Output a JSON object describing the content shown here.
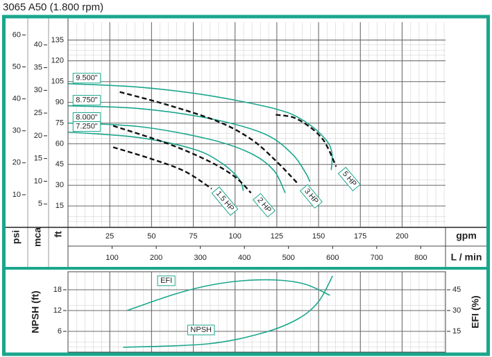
{
  "chart_data": [
    {
      "type": "line",
      "title": "3065 A50 (1.800 rpm)",
      "xlabel": "gpm",
      "xlim": [
        0,
        226
      ],
      "xticks": [
        25,
        50,
        75,
        100,
        125,
        150,
        175,
        200
      ],
      "x2label": "L / min",
      "x2lim": [
        0,
        856
      ],
      "x2ticks": [
        100,
        200,
        300,
        400,
        500,
        600,
        700,
        800
      ],
      "ylabel": "ft",
      "ylim": [
        0,
        148
      ],
      "yticks": [
        15,
        30,
        45,
        60,
        75,
        90,
        105,
        120,
        135
      ],
      "y2label": "psi",
      "y2lim": [
        0,
        64
      ],
      "y2ticks": [
        10,
        20,
        30,
        40,
        50,
        60
      ],
      "y3label": "mca",
      "y3lim": [
        0,
        45
      ],
      "y3ticks": [
        5,
        10,
        15,
        20,
        25,
        30,
        35,
        40
      ],
      "grid": true,
      "series": [
        {
          "name": "9.500\"",
          "color": "#1aa68c",
          "x": [
            0,
            42.3,
            83.8,
            125,
            142,
            154,
            158,
            157.6
          ],
          "values": [
            103.5,
            101,
            95,
            85,
            76,
            63.5,
            53.5,
            41
          ]
        },
        {
          "name": "8.750\"",
          "color": "#1aa68c",
          "x": [
            0,
            42.3,
            83.8,
            117,
            133.5,
            142,
            144.8
          ],
          "values": [
            87.5,
            85.5,
            78.5,
            67.5,
            53.5,
            39.5,
            32.5
          ]
        },
        {
          "name": "8.000\"",
          "color": "#1aa68c",
          "x": [
            0,
            42.3,
            83.8,
            108.7,
            123,
            130
          ],
          "values": [
            75,
            72.5,
            63.5,
            53.5,
            41,
            24.5
          ]
        },
        {
          "name": "7.250\"",
          "color": "#1aa68c",
          "x": [
            0,
            42.3,
            75.5,
            92,
            102.4,
            105
          ],
          "values": [
            68.5,
            64.5,
            56,
            46,
            34.5,
            26
          ]
        },
        {
          "name": "1.5 HP",
          "color": "#111111",
          "dash": true,
          "x": [
            27,
            50,
            70,
            86
          ],
          "values": [
            57.5,
            49,
            40,
            27.5
          ]
        },
        {
          "name": "2 HP",
          "color": "#111111",
          "dash": true,
          "x": [
            27,
            60,
            85,
            100,
            109.5
          ],
          "values": [
            73,
            60,
            47,
            36,
            24.5
          ]
        },
        {
          "name": "3 HP",
          "color": "#111111",
          "dash": true,
          "x": [
            31,
            60,
            90,
            110,
            125,
            137.7
          ],
          "values": [
            97.5,
            88,
            76,
            63,
            47,
            31
          ]
        },
        {
          "name": "5 HP",
          "color": "#111111",
          "dash": true,
          "x": [
            124.4,
            135,
            145,
            152,
            156,
            160.5
          ],
          "values": [
            81,
            79,
            72,
            64,
            56,
            43.5
          ]
        }
      ]
    },
    {
      "type": "line",
      "xlim": [
        0,
        226
      ],
      "xticks": [
        25,
        50,
        75,
        100,
        125,
        150,
        175,
        200
      ],
      "ylabel": "NPSH (ft)",
      "ylim": [
        0,
        23.2
      ],
      "yticks": [
        6,
        12,
        18
      ],
      "y2label": "EFI (%)",
      "y2lim": [
        0,
        58
      ],
      "y2ticks": [
        15,
        30,
        45
      ],
      "grid": true,
      "series": [
        {
          "name": "EFI",
          "color": "#1aa68c",
          "axis": "y2",
          "x": [
            35.3,
            63,
            83.8,
            104.5,
            125,
            142,
            156.8
          ],
          "values": [
            30,
            41.5,
            48,
            51.5,
            52,
            49,
            41
          ]
        },
        {
          "name": "NPSH",
          "color": "#1aa68c",
          "x": [
            33,
            83.8,
            117,
            137.7,
            150,
            158.4
          ],
          "values": [
            1.4,
            2.4,
            5.6,
            9.6,
            14.6,
            22
          ]
        }
      ]
    }
  ]
}
